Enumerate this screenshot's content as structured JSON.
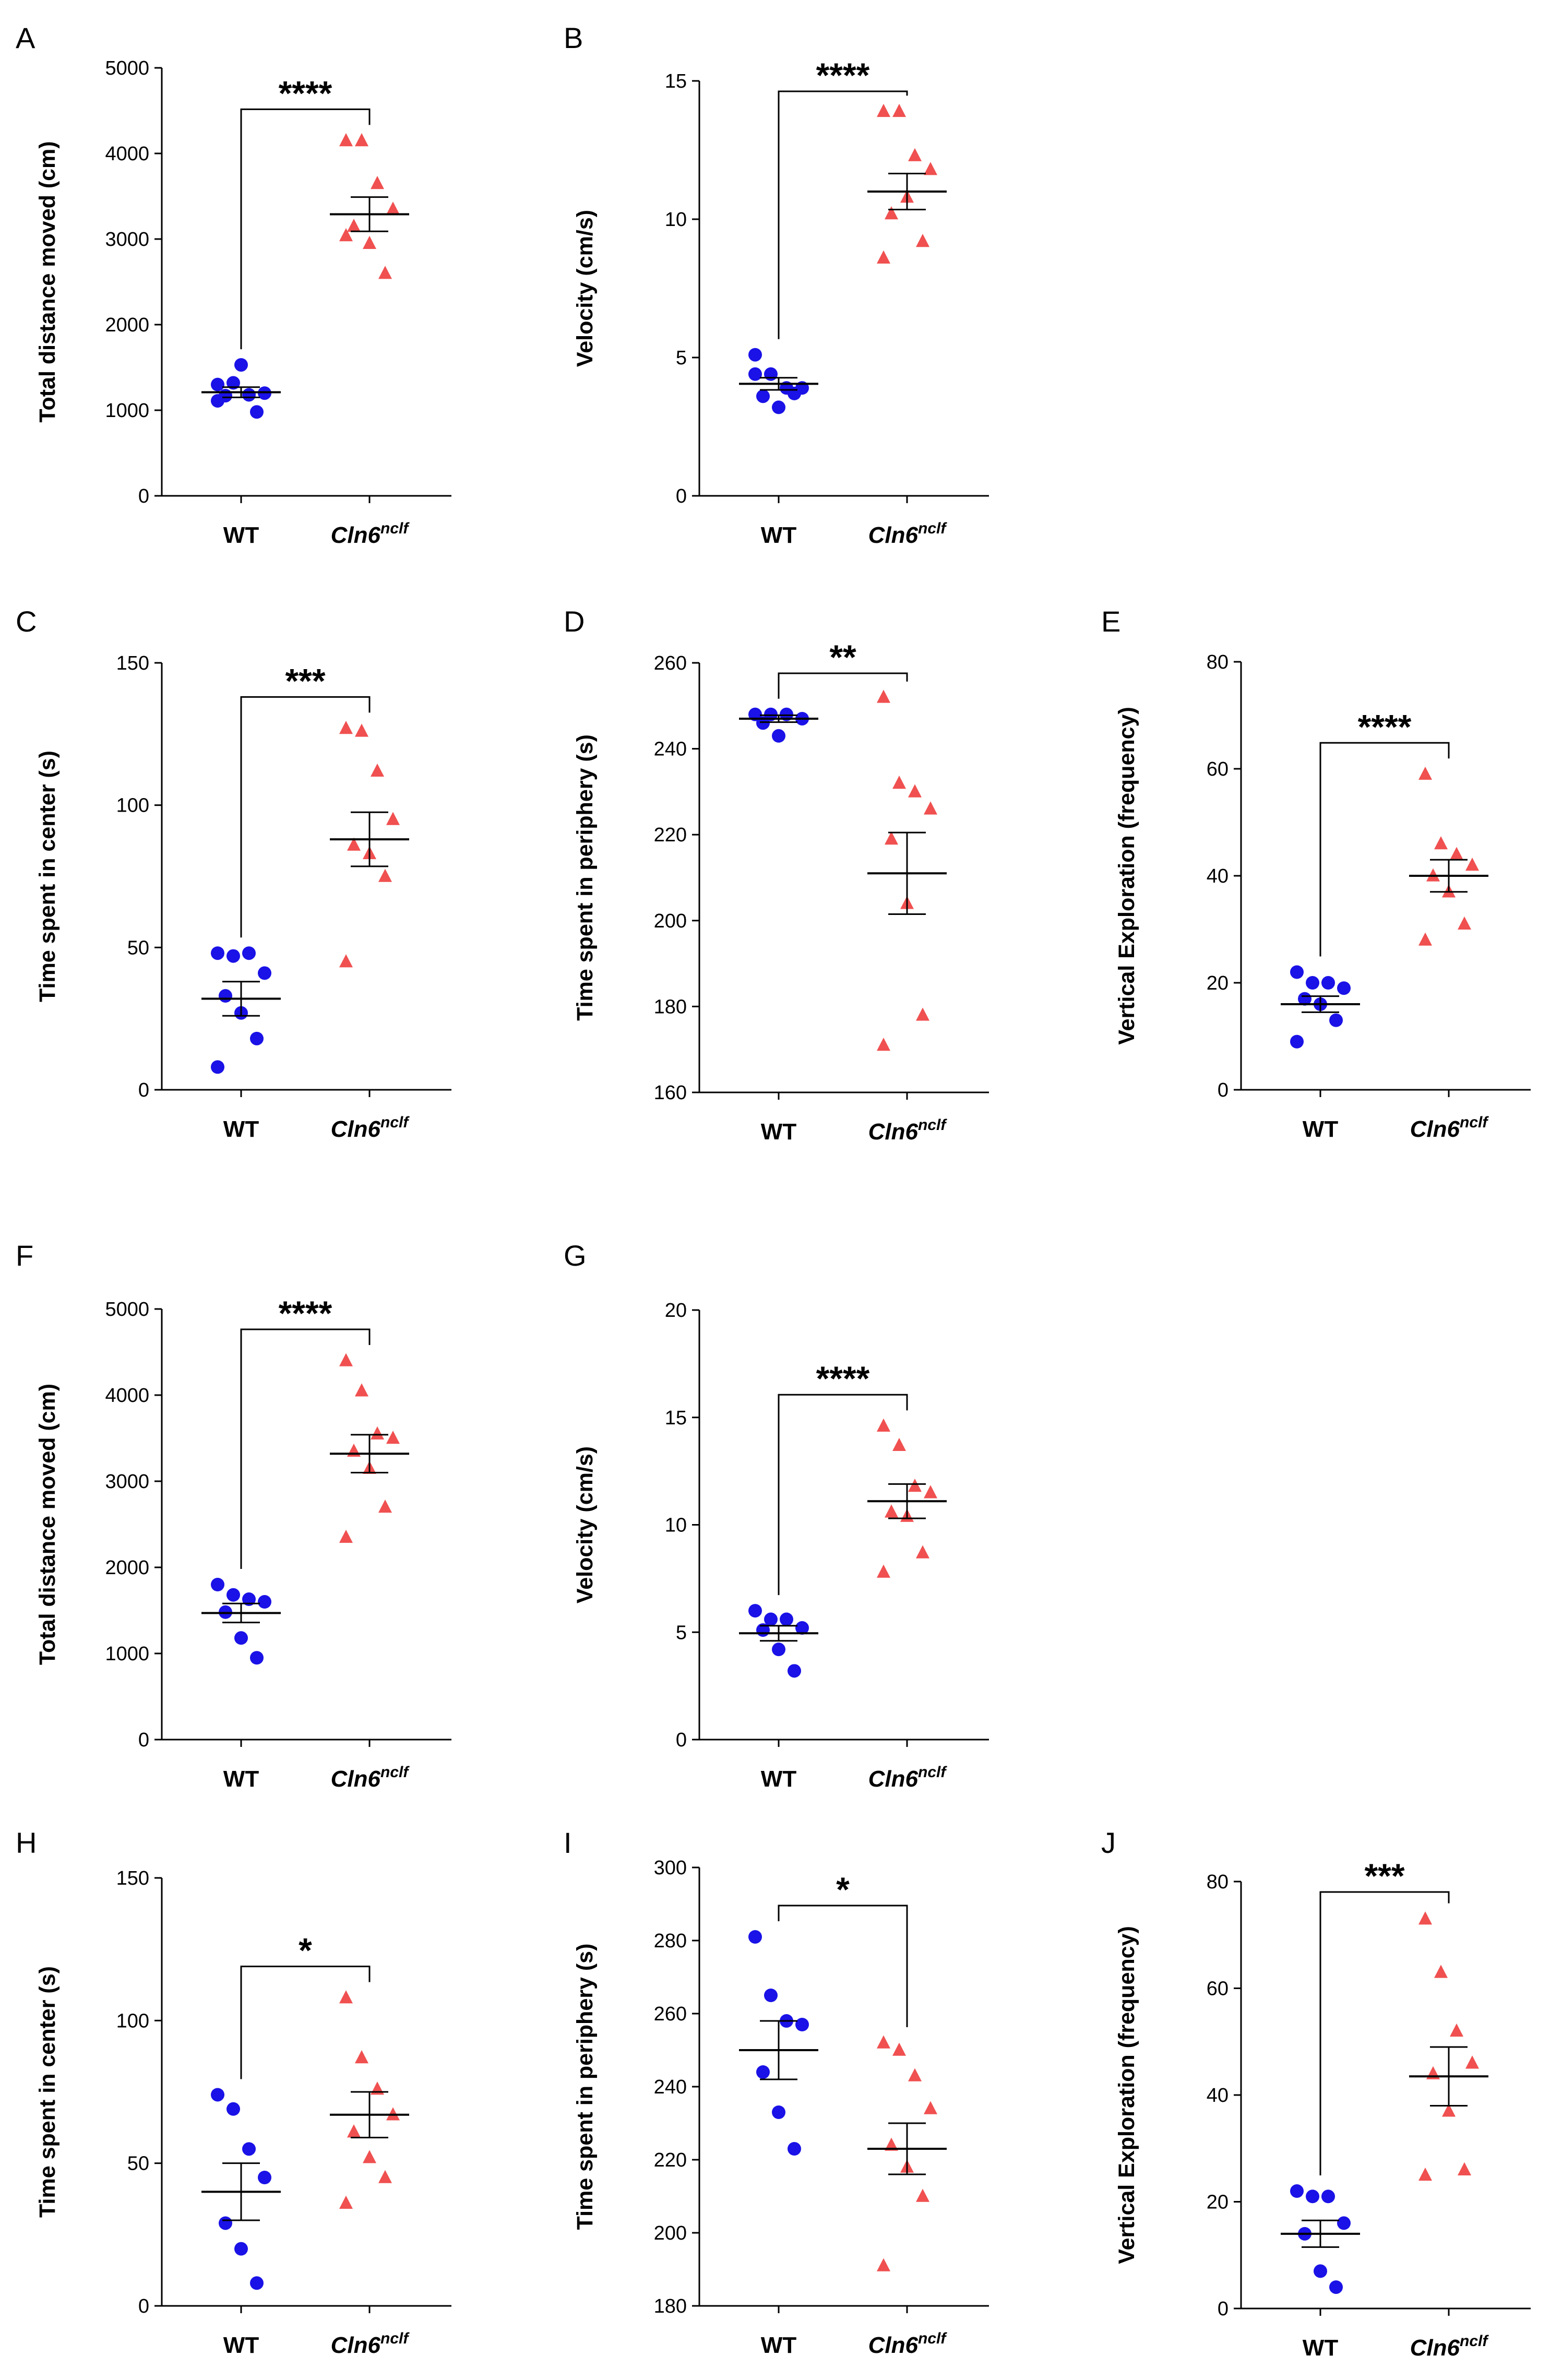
{
  "figure": {
    "markers": {
      "WT": "circle",
      "Cln6": "triangle"
    },
    "colors": {
      "WT": "#1a12e6",
      "Cln6": "#f05050",
      "axis": "#000000"
    }
  },
  "chart_data": [
    {
      "panel": "A",
      "type": "scatter",
      "ylabel": "Total distance moved (cm)",
      "ylim": [
        0,
        5000
      ],
      "yticks": [
        "0",
        "1000",
        "2000",
        "3000",
        "4000",
        "5000"
      ],
      "categories": [
        {
          "name": "WT",
          "sup": ""
        },
        {
          "name": "Cln6",
          "sup": "nclf"
        }
      ],
      "series": [
        {
          "name": "WT",
          "values": [
            1300,
            1320,
            1180,
            1200,
            1170,
            1530,
            980,
            1110
          ],
          "mean": 1210,
          "sem": 60
        },
        {
          "name": "Cln6nclf",
          "values": [
            4150,
            4150,
            3650,
            3350,
            3150,
            2950,
            2600,
            3040
          ],
          "mean": 3290,
          "sem": 200
        }
      ],
      "significance": "****"
    },
    {
      "panel": "B",
      "type": "scatter",
      "ylabel": "Velocity (cm/s)",
      "ylim": [
        0,
        15
      ],
      "yticks": [
        "0",
        "5",
        "10",
        "15"
      ],
      "categories": [
        {
          "name": "WT",
          "sup": ""
        },
        {
          "name": "Cln6",
          "sup": "nclf"
        }
      ],
      "series": [
        {
          "name": "WT",
          "values": [
            4.4,
            4.4,
            3.9,
            3.9,
            3.6,
            3.2,
            3.7,
            5.1
          ],
          "mean": 4.05,
          "sem": 0.22
        },
        {
          "name": "Cln6nclf",
          "values": [
            13.9,
            13.9,
            12.3,
            11.8,
            10.2,
            10.8,
            9.2,
            8.6
          ],
          "mean": 11.0,
          "sem": 0.65
        }
      ],
      "significance": "****"
    },
    {
      "panel": "C",
      "type": "scatter",
      "ylabel": "Time spent in center (s)",
      "ylim": [
        0,
        150
      ],
      "yticks": [
        "0",
        "50",
        "100",
        "150"
      ],
      "categories": [
        {
          "name": "WT",
          "sup": ""
        },
        {
          "name": "Cln6",
          "sup": "nclf"
        }
      ],
      "series": [
        {
          "name": "WT",
          "values": [
            48,
            47,
            48,
            41,
            33,
            27,
            18,
            8
          ],
          "mean": 32,
          "sem": 6
        },
        {
          "name": "Cln6nclf",
          "values": [
            127,
            126,
            112,
            95,
            86,
            83,
            75,
            45
          ],
          "mean": 88,
          "sem": 9.5
        }
      ],
      "significance": "***"
    },
    {
      "panel": "D",
      "type": "scatter",
      "ylabel": "Time spent in periphery (s)",
      "ylim": [
        160,
        260
      ],
      "yticks": [
        "160",
        "180",
        "200",
        "220",
        "240",
        "260"
      ],
      "categories": [
        {
          "name": "WT",
          "sup": ""
        },
        {
          "name": "Cln6",
          "sup": "nclf"
        }
      ],
      "series": [
        {
          "name": "WT",
          "values": [
            248,
            248,
            248,
            247,
            246,
            243
          ],
          "mean": 247,
          "sem": 0.8
        },
        {
          "name": "Cln6nclf",
          "values": [
            252,
            232,
            230,
            226,
            219,
            204,
            178,
            171
          ],
          "mean": 211,
          "sem": 9.5
        }
      ],
      "significance": "**"
    },
    {
      "panel": "E",
      "type": "scatter",
      "ylabel": "Vertical Exploration (frequency)",
      "ylim": [
        0,
        80
      ],
      "yticks": [
        "0",
        "20",
        "40",
        "60",
        "80"
      ],
      "categories": [
        {
          "name": "WT",
          "sup": ""
        },
        {
          "name": "Cln6",
          "sup": "nclf"
        }
      ],
      "series": [
        {
          "name": "WT",
          "values": [
            22,
            20,
            20,
            19,
            17,
            16,
            13,
            9
          ],
          "mean": 16,
          "sem": 1.5
        },
        {
          "name": "Cln6nclf",
          "values": [
            59,
            46,
            44,
            42,
            40,
            37,
            31,
            28
          ],
          "mean": 40,
          "sem": 3
        }
      ],
      "significance": "****"
    },
    {
      "panel": "F",
      "type": "scatter",
      "ylabel": "Total distance moved (cm)",
      "ylim": [
        0,
        5000
      ],
      "yticks": [
        "0",
        "1000",
        "2000",
        "3000",
        "4000",
        "5000"
      ],
      "categories": [
        {
          "name": "WT",
          "sup": ""
        },
        {
          "name": "Cln6",
          "sup": "nclf"
        }
      ],
      "series": [
        {
          "name": "WT",
          "values": [
            1800,
            1680,
            1630,
            1600,
            1480,
            1180,
            950
          ],
          "mean": 1470,
          "sem": 110
        },
        {
          "name": "Cln6nclf",
          "values": [
            4400,
            4050,
            3550,
            3500,
            3350,
            3150,
            2700,
            2350
          ],
          "mean": 3320,
          "sem": 220
        }
      ],
      "significance": "****"
    },
    {
      "panel": "G",
      "type": "scatter",
      "ylabel": "Velocity (cm/s)",
      "ylim": [
        0,
        20
      ],
      "yticks": [
        "0",
        "5",
        "10",
        "15",
        "20"
      ],
      "categories": [
        {
          "name": "WT",
          "sup": ""
        },
        {
          "name": "Cln6",
          "sup": "nclf"
        }
      ],
      "series": [
        {
          "name": "WT",
          "values": [
            6.0,
            5.6,
            5.6,
            5.2,
            5.1,
            4.2,
            3.2
          ],
          "mean": 4.95,
          "sem": 0.35
        },
        {
          "name": "Cln6nclf",
          "values": [
            14.6,
            13.7,
            11.8,
            11.5,
            10.6,
            10.4,
            8.7,
            7.8
          ],
          "mean": 11.1,
          "sem": 0.8
        }
      ],
      "significance": "****"
    },
    {
      "panel": "H",
      "type": "scatter",
      "ylabel": "Time spent in center (s)",
      "ylim": [
        0,
        150
      ],
      "yticks": [
        "0",
        "50",
        "100",
        "150"
      ],
      "categories": [
        {
          "name": "WT",
          "sup": ""
        },
        {
          "name": "Cln6",
          "sup": "nclf"
        }
      ],
      "series": [
        {
          "name": "WT",
          "values": [
            74,
            69,
            55,
            45,
            29,
            20,
            8
          ],
          "mean": 40,
          "sem": 10
        },
        {
          "name": "Cln6nclf",
          "values": [
            108,
            87,
            76,
            67,
            61,
            52,
            45,
            36
          ],
          "mean": 67,
          "sem": 8
        }
      ],
      "significance": "*"
    },
    {
      "panel": "I",
      "type": "scatter",
      "ylabel": "Time spent in periphery (s)",
      "ylim": [
        180,
        300
      ],
      "yticks": [
        "180",
        "200",
        "220",
        "240",
        "260",
        "280",
        "300"
      ],
      "categories": [
        {
          "name": "WT",
          "sup": ""
        },
        {
          "name": "Cln6",
          "sup": "nclf"
        }
      ],
      "series": [
        {
          "name": "WT",
          "values": [
            281,
            265,
            258,
            257,
            244,
            233,
            223
          ],
          "mean": 250,
          "sem": 8
        },
        {
          "name": "Cln6nclf",
          "values": [
            252,
            250,
            243,
            234,
            224,
            218,
            210,
            191
          ],
          "mean": 223,
          "sem": 7
        }
      ],
      "significance": "*"
    },
    {
      "panel": "J",
      "type": "scatter",
      "ylabel": "Vertical Exploration (frequency)",
      "ylim": [
        0,
        80
      ],
      "yticks": [
        "0",
        "20",
        "40",
        "60",
        "80"
      ],
      "categories": [
        {
          "name": "WT",
          "sup": ""
        },
        {
          "name": "Cln6",
          "sup": "nclf"
        }
      ],
      "series": [
        {
          "name": "WT",
          "values": [
            22,
            21,
            21,
            16,
            14,
            7,
            4
          ],
          "mean": 14,
          "sem": 2.5
        },
        {
          "name": "Cln6nclf",
          "values": [
            73,
            63,
            52,
            46,
            44,
            37,
            26,
            25
          ],
          "mean": 43.5,
          "sem": 5.5
        }
      ],
      "significance": "***"
    }
  ]
}
